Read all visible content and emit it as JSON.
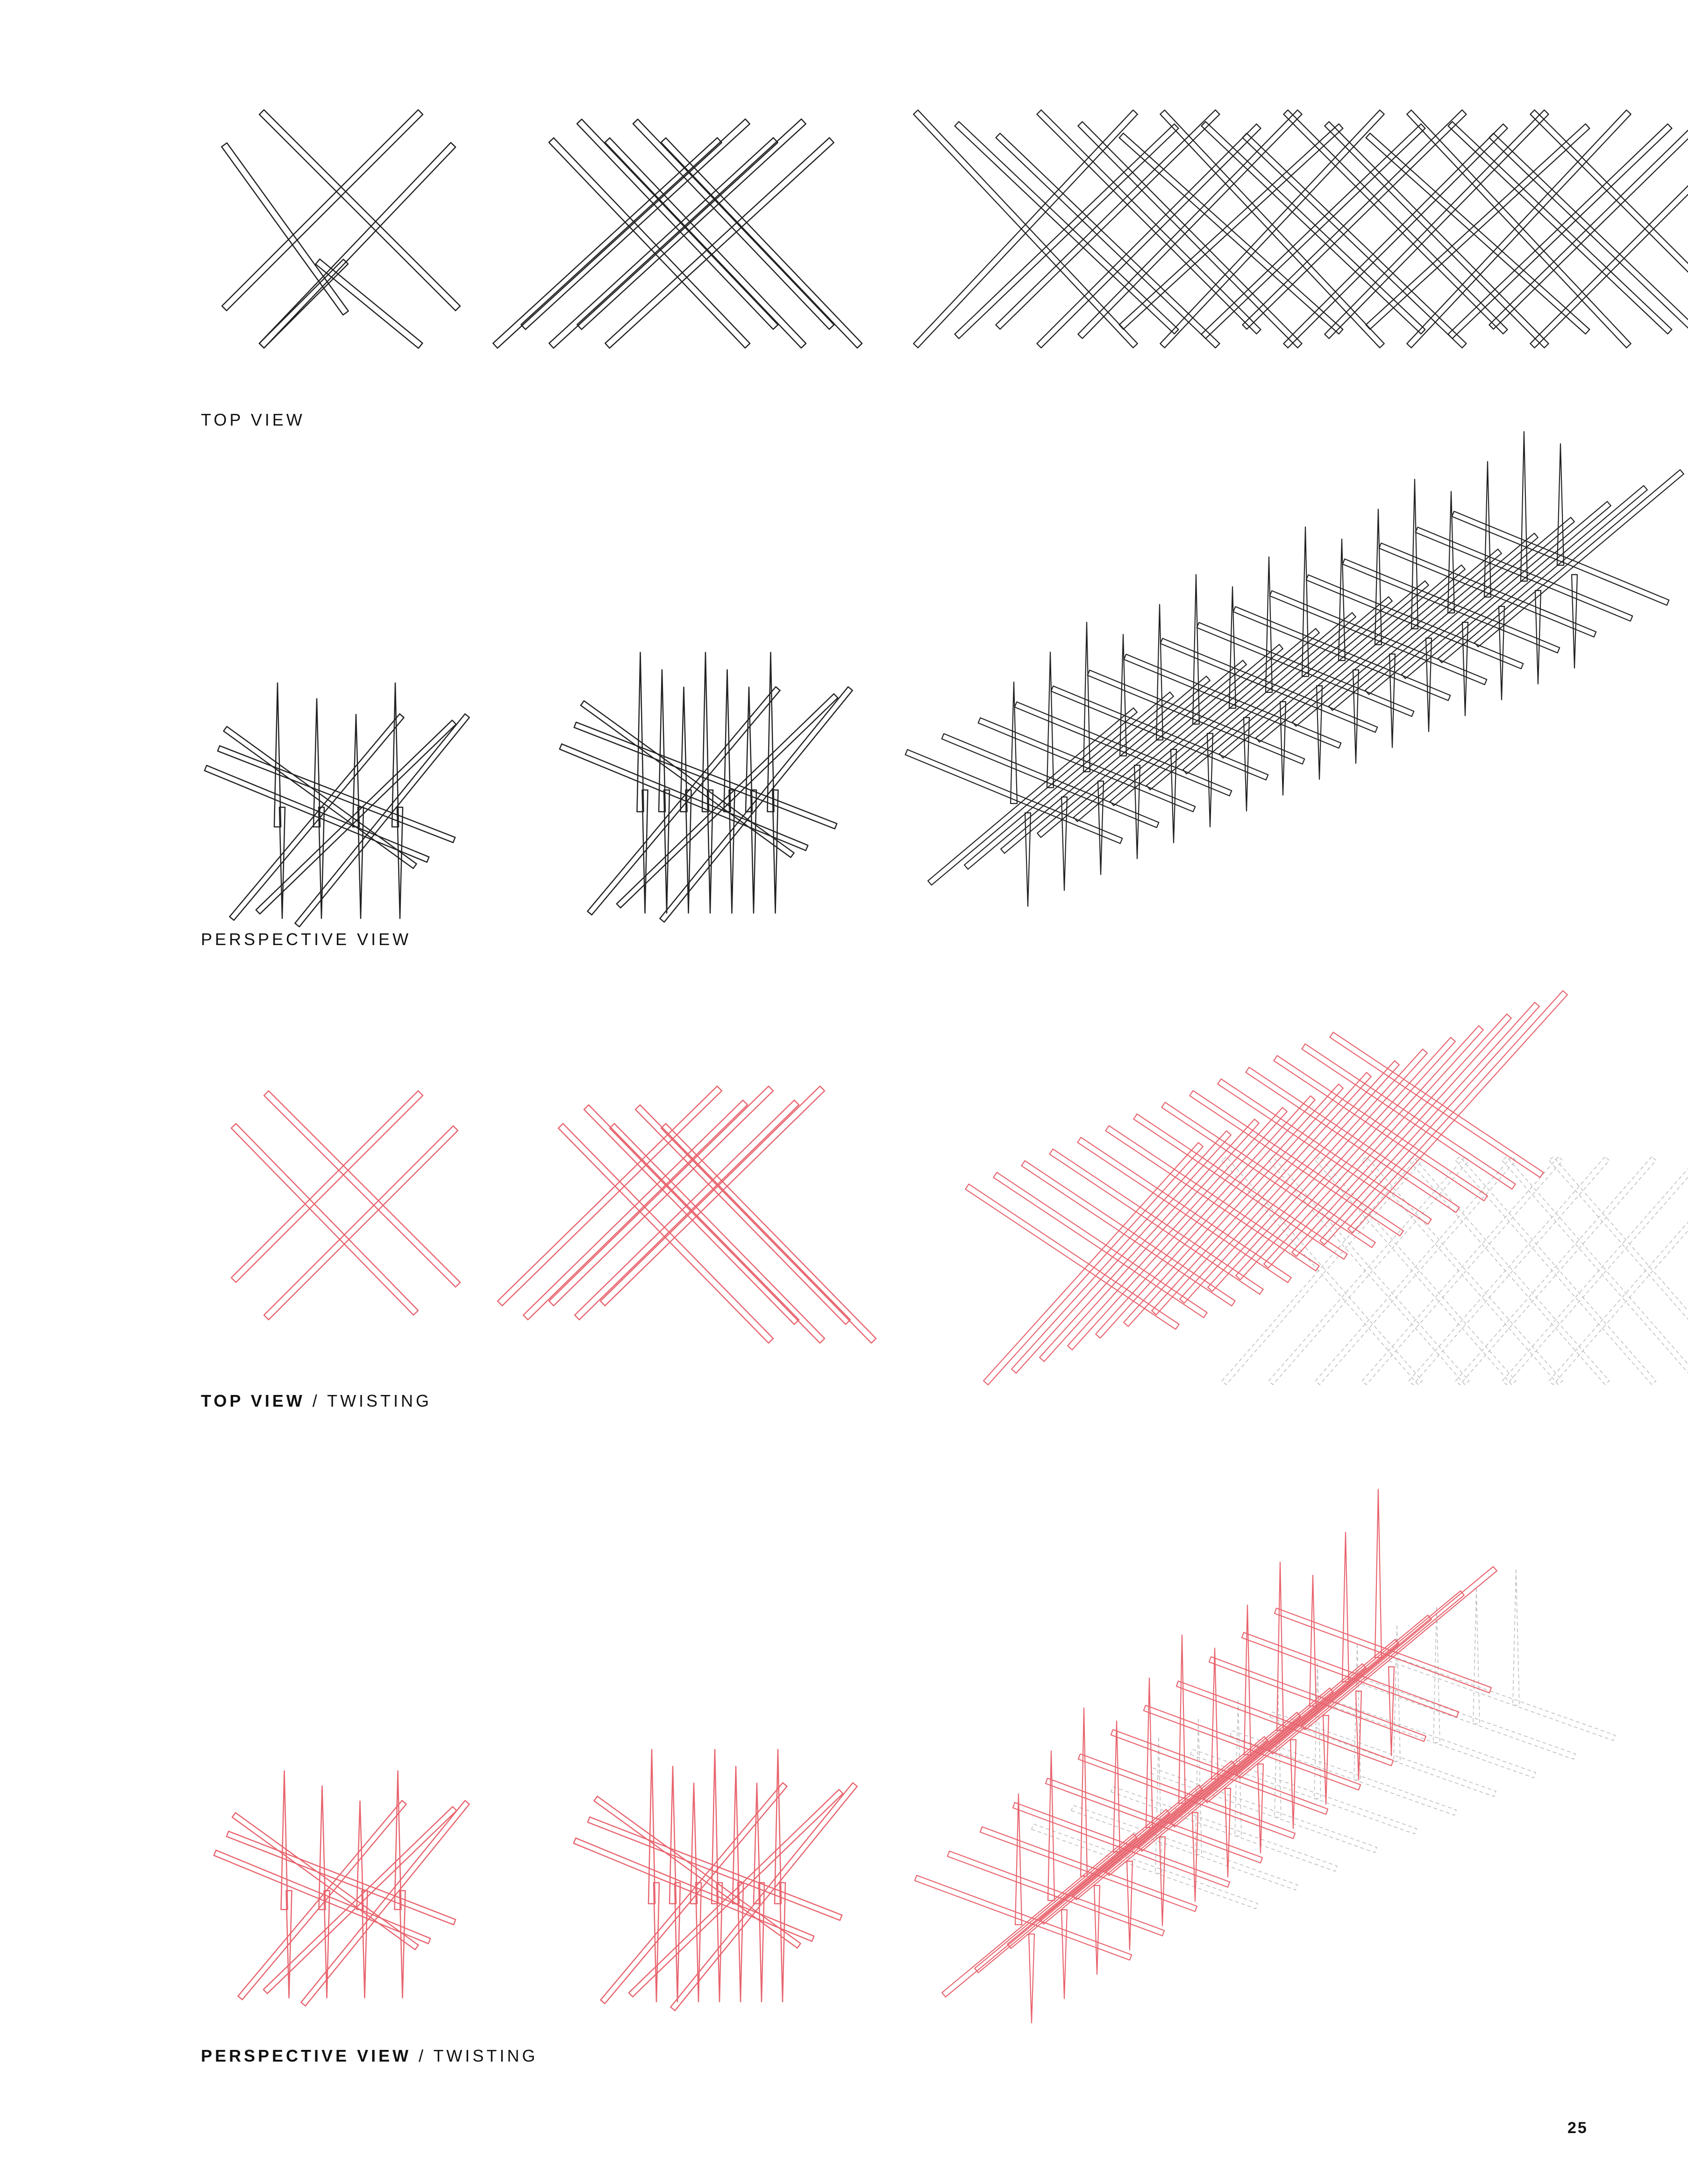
{
  "colors": {
    "ink": "#222222",
    "accent": "#e8646e",
    "ghost": "#bdbdbd"
  },
  "rows": [
    {
      "caption_strong": "",
      "caption_sep": "",
      "caption_rest": "TOP VIEW",
      "view": "top",
      "tone": "ink"
    },
    {
      "caption_strong": "",
      "caption_sep": "",
      "caption_rest": "PERSPECTIVE VIEW",
      "view": "perspective",
      "tone": "ink"
    },
    {
      "caption_strong": "TOP VIEW",
      "caption_sep": " / ",
      "caption_rest": "TWISTING",
      "view": "top-twist",
      "tone": "accent"
    },
    {
      "caption_strong": "PERSPECTIVE VIEW",
      "caption_sep": " / ",
      "caption_rest": "TWISTING",
      "view": "perspective-twist",
      "tone": "accent"
    }
  ],
  "page_number": "25"
}
